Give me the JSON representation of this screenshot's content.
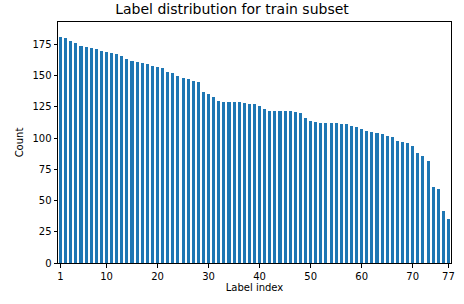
{
  "chart_data": {
    "type": "bar",
    "title": "Label distribution for train subset",
    "x_label": "Label index",
    "y_label": "Count",
    "x": [
      1,
      2,
      3,
      4,
      5,
      6,
      7,
      8,
      9,
      10,
      11,
      12,
      13,
      14,
      15,
      16,
      17,
      18,
      19,
      20,
      21,
      22,
      23,
      24,
      25,
      26,
      27,
      28,
      29,
      30,
      31,
      32,
      33,
      34,
      35,
      36,
      37,
      38,
      39,
      40,
      41,
      42,
      43,
      44,
      45,
      46,
      47,
      48,
      49,
      50,
      51,
      52,
      53,
      54,
      55,
      56,
      57,
      58,
      59,
      60,
      61,
      62,
      63,
      64,
      65,
      66,
      67,
      68,
      69,
      70,
      71,
      72,
      73,
      74,
      75,
      76,
      77
    ],
    "values": [
      181,
      180,
      178,
      176,
      174,
      173,
      172,
      171,
      170,
      169,
      168,
      167,
      166,
      163,
      162,
      161,
      160,
      159,
      158,
      157,
      156,
      153,
      152,
      150,
      148,
      147,
      146,
      145,
      137,
      135,
      133,
      130,
      129,
      129,
      129,
      129,
      128,
      127,
      127,
      126,
      123,
      122,
      122,
      122,
      122,
      122,
      121,
      120,
      116,
      114,
      113,
      112,
      112,
      112,
      112,
      111,
      111,
      110,
      109,
      107,
      106,
      105,
      104,
      103,
      102,
      101,
      98,
      97,
      96,
      94,
      88,
      86,
      82,
      61,
      59,
      42,
      35
    ],
    "color": "#1f77b4",
    "xlim": [
      0.5,
      77.5
    ],
    "xticks": [
      1,
      10,
      20,
      30,
      40,
      50,
      60,
      70,
      77
    ],
    "ylim": [
      0,
      193
    ],
    "yticks": [
      0,
      25,
      50,
      75,
      100,
      125,
      150,
      175
    ],
    "grid": false
  }
}
